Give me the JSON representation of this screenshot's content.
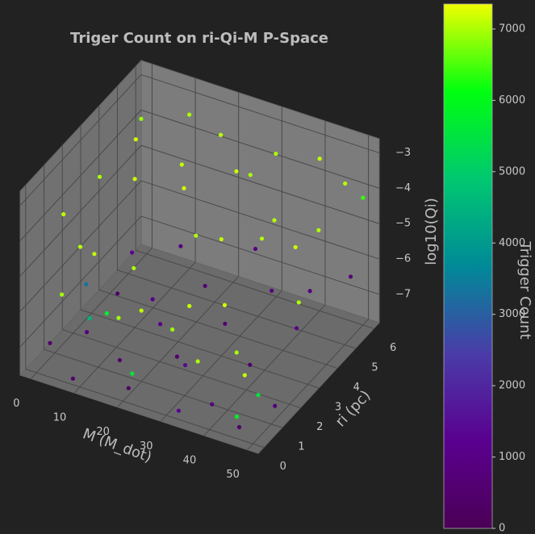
{
  "chart_data": {
    "type": "scatter3d",
    "title": "Triger Count on ri-Qi-M P-Space",
    "xlabel": "M (M_dot)",
    "ylabel": "ri (pc)",
    "zlabel": "log10(Qi)",
    "colorbar_label": "Trigger Count",
    "xlim": [
      -2.5,
      52.5
    ],
    "ylim": [
      -0.3,
      6.3
    ],
    "zlim": [
      -7.8,
      -2.6
    ],
    "clim": [
      0,
      7350
    ],
    "xticks": [
      0,
      10,
      20,
      30,
      40,
      50
    ],
    "yticks": [
      0,
      1,
      2,
      3,
      4,
      5,
      6
    ],
    "zticks": [
      {
        "value": -7,
        "label": "−7"
      },
      {
        "value": -6,
        "label": "−6"
      },
      {
        "value": -5,
        "label": "−5"
      },
      {
        "value": -4,
        "label": "−4"
      },
      {
        "value": -3,
        "label": "−3"
      }
    ],
    "cticks": [
      0,
      1000,
      2000,
      3000,
      4000,
      5000,
      6000,
      7000
    ],
    "colormap": [
      "#4b0055",
      "#5a0090",
      "#4a3ca8",
      "#008a98",
      "#00c870",
      "#00ff10",
      "#f0ff00"
    ],
    "grid": true,
    "x": [
      2,
      4,
      6,
      3,
      8,
      10,
      12,
      5,
      7,
      15,
      14,
      18,
      20,
      22,
      25,
      28,
      30,
      32,
      35,
      38,
      40,
      42,
      45,
      48,
      50,
      46,
      36,
      26,
      16,
      9,
      44,
      33,
      24,
      50,
      12,
      1,
      4,
      6,
      3,
      10,
      15,
      18,
      22,
      26,
      20,
      28,
      30,
      34,
      38,
      40,
      44,
      48,
      50,
      46,
      32,
      24,
      12,
      8,
      42,
      8,
      20,
      45,
      47,
      3
    ],
    "y": [
      1,
      2.5,
      4,
      5,
      0.5,
      3,
      5.5,
      0.2,
      1.5,
      4.5,
      2,
      5.8,
      1,
      3.5,
      5,
      0.8,
      3,
      5.5,
      2,
      4,
      6,
      1,
      3.5,
      5.5,
      2.5,
      0.5,
      0.3,
      2.2,
      0.7,
      5.8,
      5,
      4.5,
      6,
      6,
      1,
      0.5,
      1.8,
      3,
      4.5,
      5.5,
      1,
      2.5,
      4,
      5.8,
      0.3,
      1.5,
      3.2,
      4.8,
      0.6,
      2.2,
      3.8,
      5.8,
      1.2,
      0.2,
      0.2,
      2,
      3.5,
      0.1,
      5,
      1,
      0.5,
      0.3,
      1,
      2
    ],
    "z": [
      -3.8,
      -3.5,
      -3.2,
      -3.3,
      -4.2,
      -3.6,
      -3.1,
      -5.5,
      -5,
      -4.5,
      -5.4,
      -3.6,
      -5.8,
      -5,
      -3.9,
      -5.9,
      -4.5,
      -3.4,
      -5.6,
      -4.2,
      -3.5,
      -6.1,
      -4.4,
      -3.6,
      -5.2,
      -6.3,
      -6.2,
      -6.1,
      -6,
      -4.8,
      -4.8,
      -5.2,
      -4.6,
      -4.2,
      -6.2,
      -7.2,
      -7.5,
      -7,
      -6.8,
      -6.9,
      -7.4,
      -7.1,
      -6.7,
      -6.5,
      -7.6,
      -7.3,
      -7,
      -6.8,
      -7.5,
      -7.2,
      -6.9,
      -6.4,
      -7.4,
      -7.6,
      -7.7,
      -7.5,
      -7.2,
      -7.7,
      -6.6,
      -6.5,
      -7.3,
      -7.4,
      -7.1,
      -6.3
    ],
    "values": [
      7100,
      7000,
      7200,
      6900,
      7050,
      7150,
      7000,
      6950,
      7100,
      7200,
      7000,
      7050,
      7100,
      7000,
      7150,
      6900,
      7100,
      7000,
      7200,
      7050,
      7100,
      7000,
      7150,
      7050,
      7000,
      7100,
      7000,
      7150,
      6950,
      7100,
      7000,
      7050,
      7000,
      6400,
      5800,
      600,
      900,
      400,
      1200,
      800,
      500,
      1100,
      700,
      900,
      300,
      1400,
      600,
      1000,
      800,
      500,
      1200,
      700,
      900,
      400,
      1300,
      600,
      1000,
      500,
      800,
      4500,
      5600,
      5800,
      5500,
      3300
    ]
  }
}
